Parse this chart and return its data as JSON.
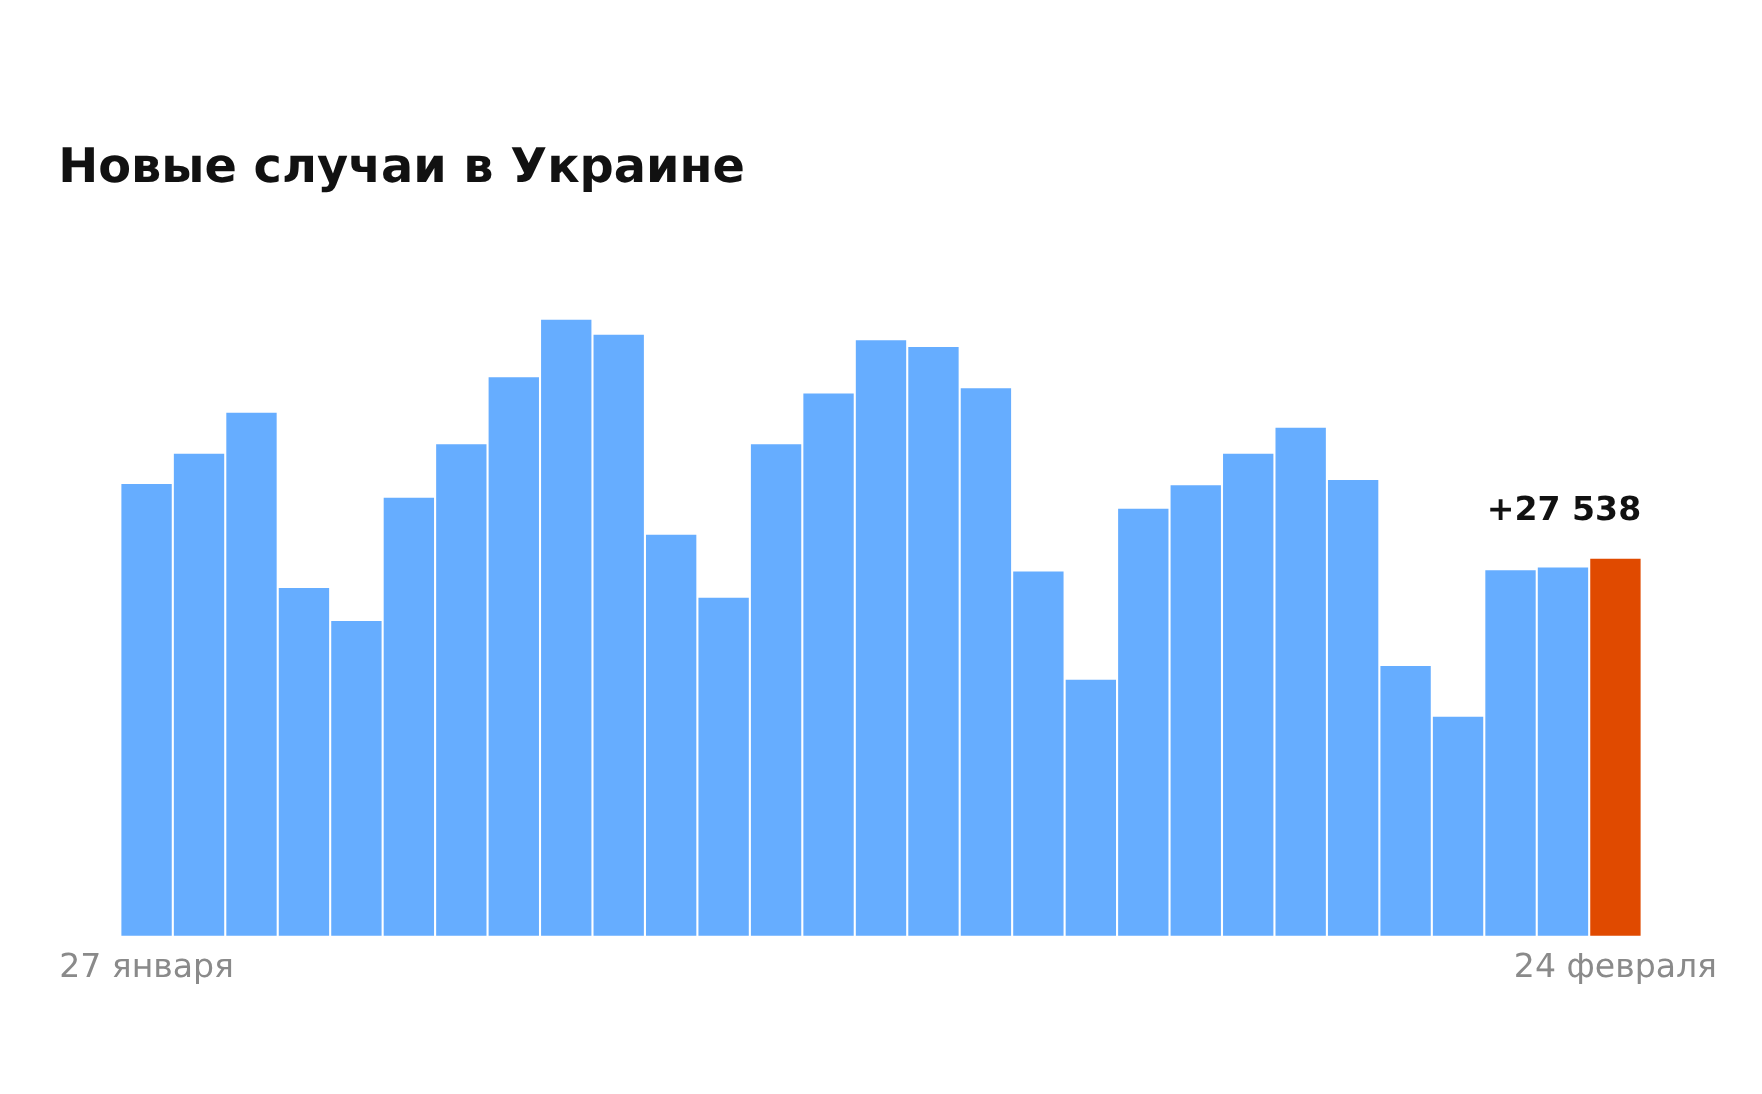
{
  "chart_data": {
    "type": "bar",
    "title": "Новые случаи в Украине",
    "categories": [
      "27 января",
      null,
      null,
      null,
      null,
      null,
      null,
      null,
      null,
      null,
      null,
      null,
      null,
      null,
      null,
      null,
      null,
      null,
      null,
      null,
      null,
      null,
      null,
      null,
      null,
      null,
      null,
      null,
      "24 февраля"
    ],
    "values": [
      33000,
      35200,
      38200,
      25400,
      23000,
      32000,
      35900,
      40800,
      45000,
      43900,
      29300,
      24700,
      35900,
      39600,
      43500,
      43000,
      40000,
      26600,
      18700,
      31200,
      32900,
      35200,
      37100,
      33300,
      19700,
      16000,
      26700,
      26900,
      27538
    ],
    "colors": [
      "#66adff",
      "#66adff",
      "#66adff",
      "#66adff",
      "#66adff",
      "#66adff",
      "#66adff",
      "#66adff",
      "#66adff",
      "#66adff",
      "#66adff",
      "#66adff",
      "#66adff",
      "#66adff",
      "#66adff",
      "#66adff",
      "#66adff",
      "#66adff",
      "#66adff",
      "#66adff",
      "#66adff",
      "#66adff",
      "#66adff",
      "#66adff",
      "#66adff",
      "#66adff",
      "#66adff",
      "#66adff",
      "#e04a00"
    ],
    "value_labels": [
      null,
      null,
      null,
      null,
      null,
      null,
      null,
      null,
      null,
      null,
      null,
      null,
      null,
      null,
      null,
      null,
      null,
      null,
      null,
      null,
      null,
      null,
      null,
      null,
      null,
      null,
      null,
      null,
      "+27 538"
    ],
    "grid": false
  }
}
